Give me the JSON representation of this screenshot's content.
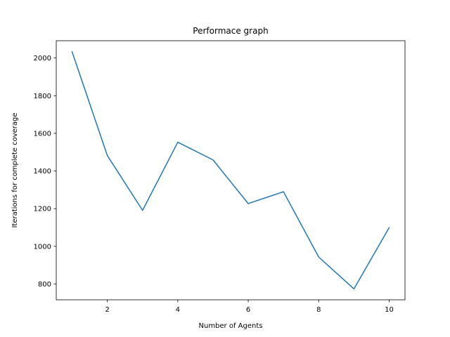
{
  "chart_data": {
    "type": "line",
    "title": "Performace graph",
    "xlabel": "Number of Agents",
    "ylabel": "Iterations for complete coverage",
    "x": [
      1,
      2,
      3,
      4,
      5,
      6,
      7,
      8,
      9,
      10
    ],
    "series": [
      {
        "values": [
          2033,
          1482,
          1191,
          1553,
          1459,
          1227,
          1290,
          943,
          774,
          1099
        ],
        "color": "#1f77b4"
      }
    ],
    "xlim": [
      0.55,
      10.45
    ],
    "ylim": [
      716,
      2092
    ],
    "xticks": [
      2,
      4,
      6,
      8,
      10
    ],
    "xtick_labels": [
      "2",
      "4",
      "6",
      "8",
      "10"
    ],
    "yticks": [
      800,
      1000,
      1200,
      1400,
      1600,
      1800,
      2000
    ],
    "ytick_labels": [
      "800",
      "1000",
      "1200",
      "1400",
      "1600",
      "1800",
      "2000"
    ],
    "grid": false,
    "legend": "none"
  }
}
